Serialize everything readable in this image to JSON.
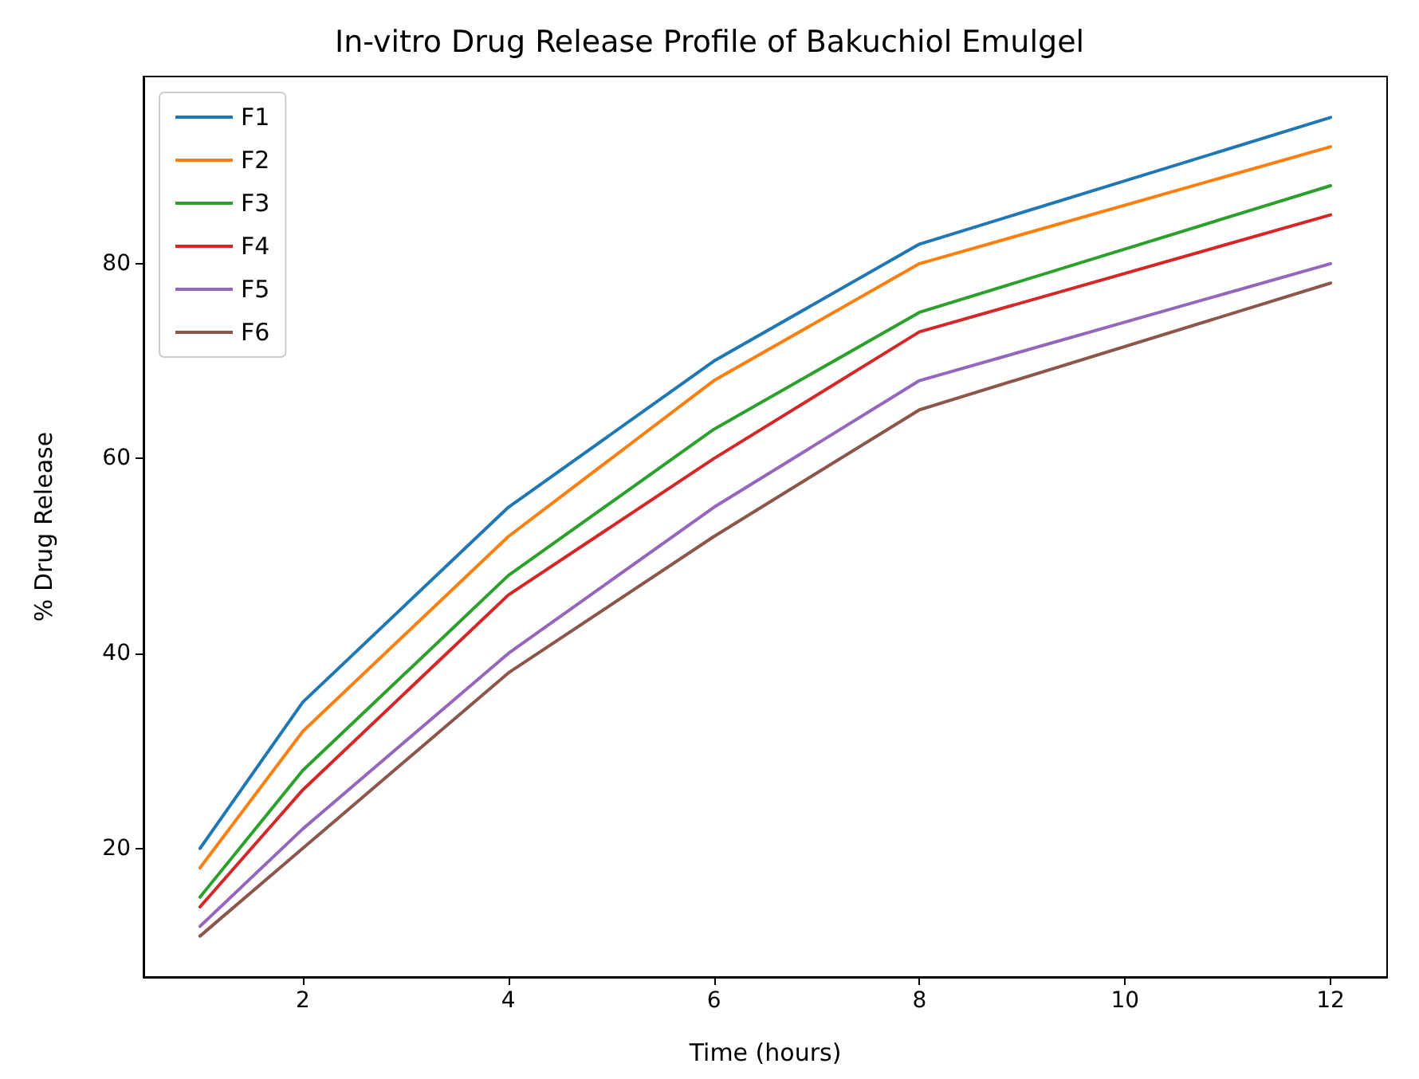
{
  "chart_data": {
    "type": "line",
    "title": "In-vitro Drug Release Profile of Bakuchiol Emulgel",
    "xlabel": "Time (hours)",
    "ylabel": "% Drug Release",
    "x": [
      1,
      2,
      4,
      6,
      8,
      12
    ],
    "series": [
      {
        "name": "F1",
        "color": "#1f77b4",
        "values": [
          20,
          35,
          55,
          70,
          82,
          95
        ]
      },
      {
        "name": "F2",
        "color": "#ff7f0e",
        "values": [
          18,
          32,
          52,
          68,
          80,
          92
        ]
      },
      {
        "name": "F3",
        "color": "#2ca02c",
        "values": [
          15,
          28,
          48,
          63,
          75,
          88
        ]
      },
      {
        "name": "F4",
        "color": "#d62728",
        "values": [
          14,
          26,
          46,
          60,
          73,
          85
        ]
      },
      {
        "name": "F5",
        "color": "#9467bd",
        "values": [
          12,
          22,
          40,
          55,
          68,
          80
        ]
      },
      {
        "name": "F6",
        "color": "#8c564b",
        "values": [
          11,
          20,
          38,
          52,
          65,
          78
        ]
      }
    ],
    "xlim": [
      0.45,
      12.55
    ],
    "xticks": [
      2,
      4,
      6,
      8,
      10,
      12
    ],
    "ylim": [
      6.8,
      99.2
    ],
    "yticks": [
      20,
      40,
      60,
      80
    ],
    "grid": false,
    "legend": "top left",
    "marker": "none",
    "line_style": "solid"
  }
}
